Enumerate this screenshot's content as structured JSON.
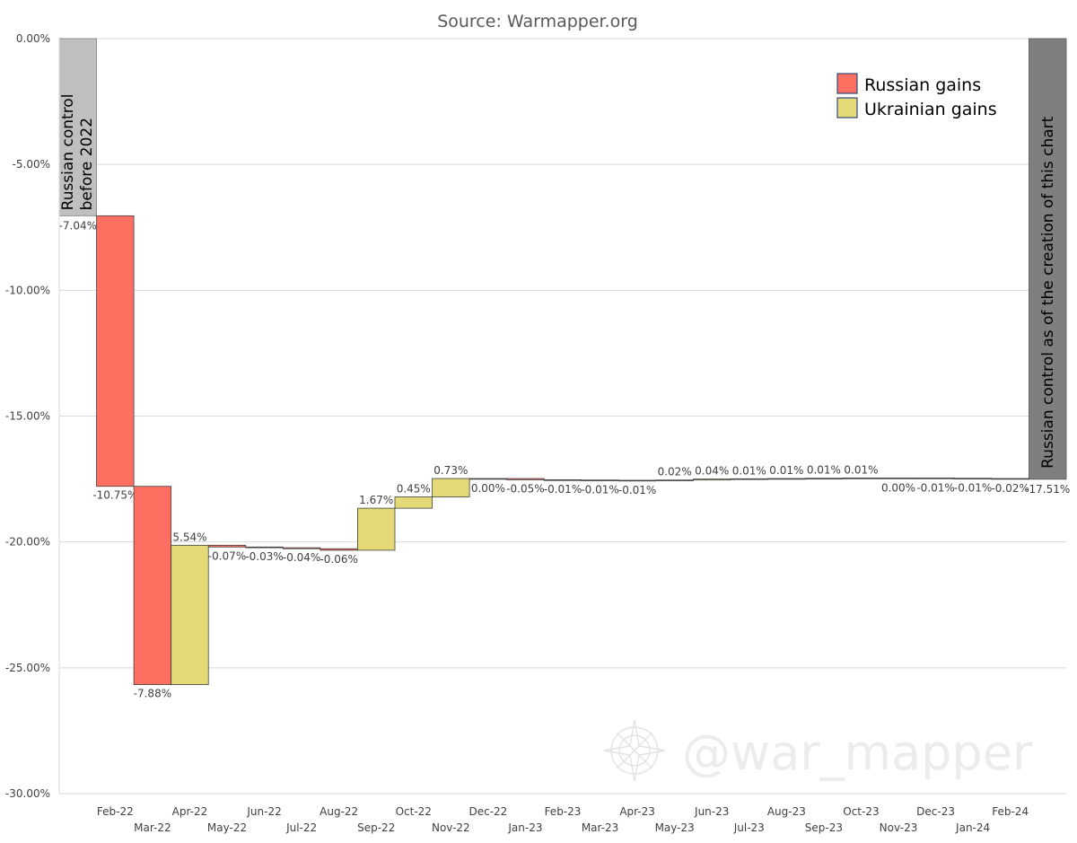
{
  "chart_data": {
    "type": "bar",
    "subtype": "waterfall",
    "title": "Source:  Warmapper.org",
    "ylim": [
      -30,
      0
    ],
    "y_tick_labels": [
      "0.00%",
      "-5.00%",
      "-10.00%",
      "-15.00%",
      "-20.00%",
      "-25.00%",
      "-30.00%"
    ],
    "y_ticks": [
      0,
      -5,
      -10,
      -15,
      -20,
      -25,
      -30
    ],
    "grid": true,
    "start": {
      "label": "Russian control before 2022",
      "value": -7.04,
      "data_label": "-7.04%",
      "color": "#bfbfbf"
    },
    "end": {
      "label": "Russian control as of the creation of this chart",
      "value": -17.51,
      "data_label": "-17.51%",
      "color": "#7f7f7f"
    },
    "categories": [
      "Feb-22",
      "Mar-22",
      "Apr-22",
      "May-22",
      "Jun-22",
      "Jul-22",
      "Aug-22",
      "Sep-22",
      "Oct-22",
      "Nov-22",
      "Dec-22",
      "Jan-23",
      "Feb-23",
      "Mar-23",
      "Apr-23",
      "May-23",
      "Jun-23",
      "Jul-23",
      "Aug-23",
      "Sep-23",
      "Oct-23",
      "Nov-23",
      "Dec-23",
      "Jan-24",
      "Feb-24"
    ],
    "changes": [
      -10.75,
      -7.88,
      5.54,
      -0.07,
      -0.03,
      -0.04,
      -0.06,
      1.67,
      0.45,
      0.73,
      0.0,
      -0.05,
      -0.01,
      -0.01,
      -0.01,
      0.02,
      0.04,
      0.01,
      0.01,
      0.01,
      0.01,
      0.0,
      -0.01,
      -0.01,
      -0.02
    ],
    "data_labels": [
      "-10.75%",
      "-7.88%",
      "5.54%",
      "-0.07%",
      "-0.03%",
      "-0.04%",
      "-0.06%",
      "1.67%",
      "0.45%",
      "0.73%",
      "0.00%",
      "-0.05%",
      "-0.01%",
      "-0.01%",
      "-0.01%",
      "0.02%",
      "0.04%",
      "0.01%",
      "0.01%",
      "0.01%",
      "0.01%",
      "0.00%",
      "-0.01%",
      "-0.01%",
      "-0.02%"
    ],
    "series": [
      {
        "name": "Russian gains",
        "color": "#ff6f61"
      },
      {
        "name": "Ukrainian gains",
        "color": "#e3d976"
      }
    ],
    "legend_position": "top-right",
    "watermark": "@war_mapper"
  }
}
